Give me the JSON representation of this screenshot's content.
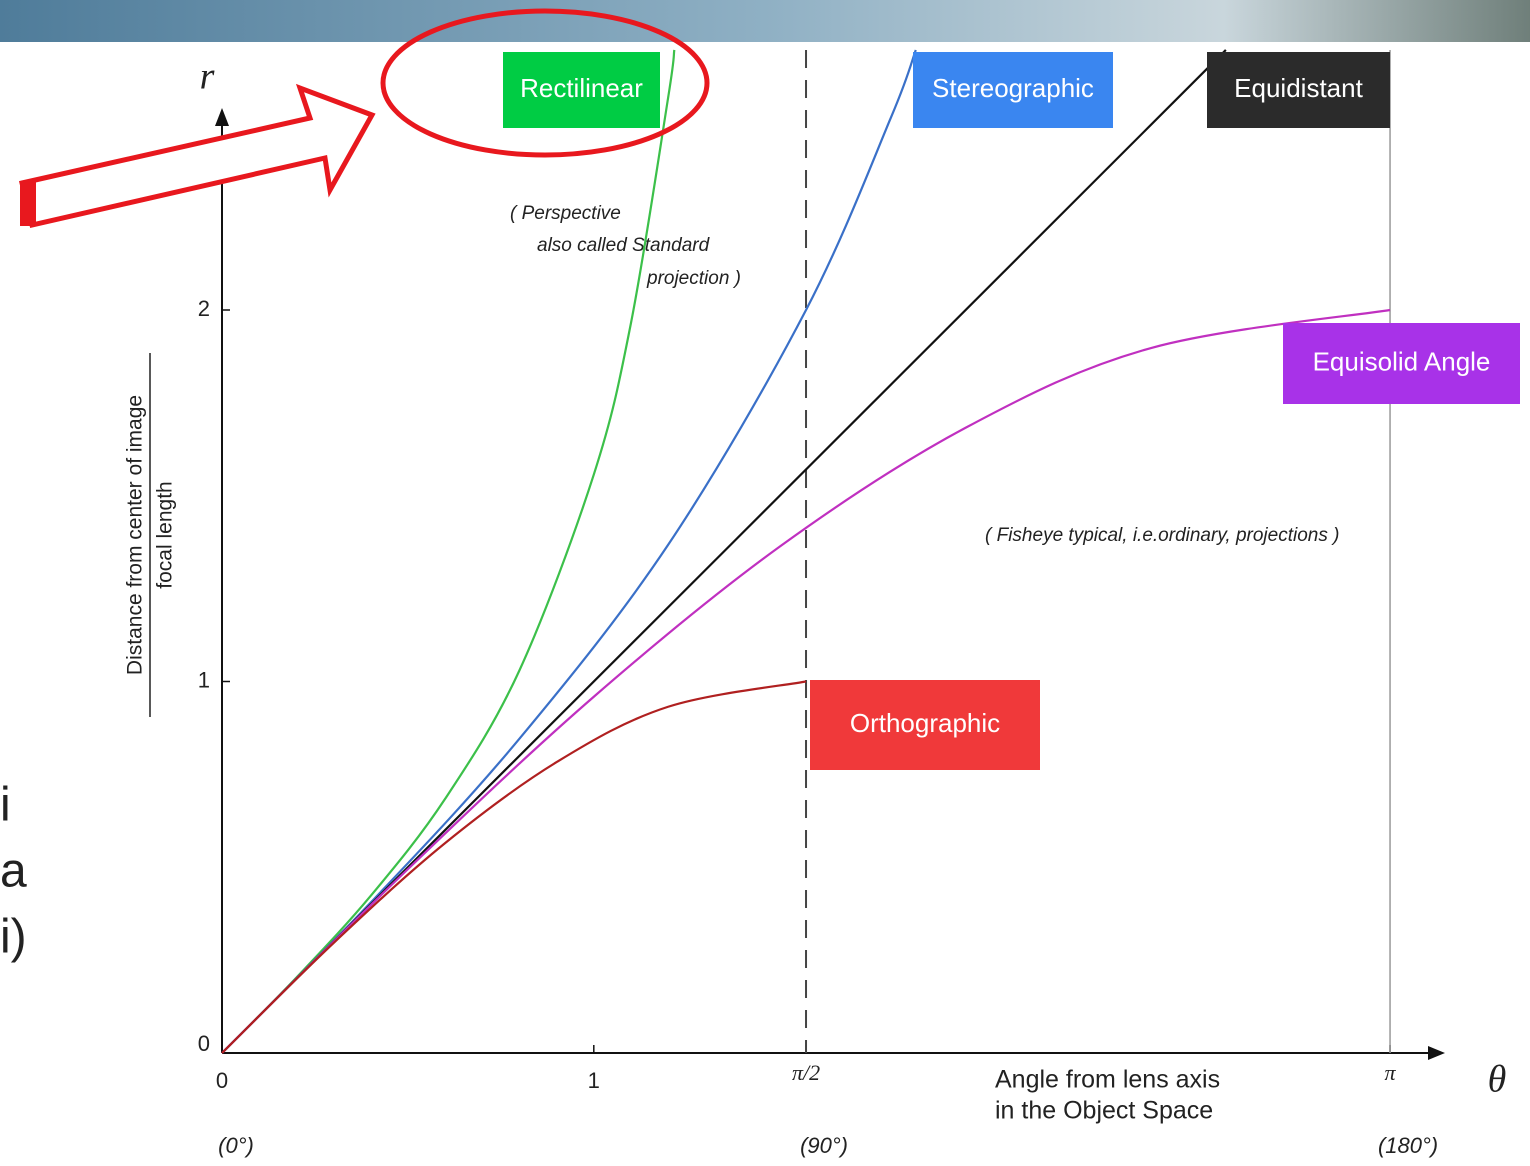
{
  "chart_data": {
    "type": "line",
    "y_axis_symbol": "r",
    "x_axis_symbol": "θ",
    "ylabel": {
      "numerator": "Distance from center of image",
      "denominator": "focal length"
    },
    "xlabel": [
      "Angle from lens axis",
      "in the Object Space"
    ],
    "annotations": [
      [
        "( Perspective",
        "also called  Standard",
        "projection )"
      ],
      [
        "( Fisheye typical, i.e.ordinary, projections )"
      ]
    ],
    "side_text": [
      "i",
      "a",
      "i)"
    ],
    "xlim": [
      0,
      3.3
    ],
    "ylim": [
      0,
      2.7
    ],
    "xticks": [
      0,
      1,
      {
        "value": 1.5708,
        "label": "π/2"
      },
      {
        "value": 3.1416,
        "label": "π"
      }
    ],
    "xtick_sublabels": [
      {
        "value": 0,
        "label": "(0°)"
      },
      {
        "value": 1.5708,
        "label": "(90°)"
      },
      {
        "value": 3.1416,
        "label": "(180°)"
      }
    ],
    "yticks": [
      0,
      1,
      2
    ],
    "series": [
      {
        "name": "Rectilinear",
        "color": "#3cc04a",
        "box_color": "#00cc44",
        "x": [
          0,
          0.2,
          0.4,
          0.6,
          0.8,
          1.0,
          1.1,
          1.2,
          1.2165
        ],
        "values": [
          0,
          0.203,
          0.423,
          0.684,
          1.03,
          1.557,
          1.965,
          2.572,
          2.7
        ]
      },
      {
        "name": "Stereographic",
        "color": "#3a70c8",
        "box_color": "#3a86f0",
        "x": [
          0,
          0.4,
          0.8,
          1.2,
          1.5708,
          1.8,
          1.866
        ],
        "values": [
          0,
          0.405,
          0.846,
          1.368,
          2.0,
          2.52,
          2.7
        ]
      },
      {
        "name": "Equidistant",
        "color": "#111111",
        "box_color": "#2b2b2b",
        "x": [
          0,
          2.7
        ],
        "values": [
          0,
          2.7
        ]
      },
      {
        "name": "Equisolid Angle",
        "color": "#c030c0",
        "box_color": "#a832e8",
        "x": [
          0,
          0.5,
          1.0,
          1.5,
          2.0,
          2.5,
          3.1416
        ],
        "values": [
          0,
          0.495,
          0.959,
          1.363,
          1.683,
          1.898,
          2.0
        ]
      },
      {
        "name": "Orthographic",
        "color": "#b02020",
        "box_color": "#f0393a",
        "x": [
          0,
          0.3,
          0.6,
          0.9,
          1.2,
          1.5708
        ],
        "values": [
          0,
          0.296,
          0.565,
          0.783,
          0.932,
          1.0
        ]
      }
    ]
  }
}
